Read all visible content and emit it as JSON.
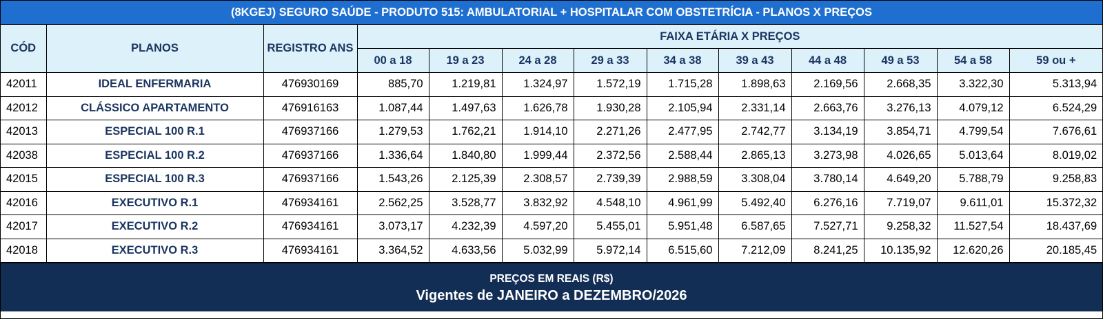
{
  "title": "(8KGEJ) SEGURO SAÚDE - PRODUTO 515: AMBULATORIAL + HOSPITALAR COM OBSTETRÍCIA - PLANOS X PREÇOS",
  "headers": {
    "cod": "CÓD",
    "planos": "PLANOS",
    "registro": "REGISTRO ANS",
    "faixa": "FAIXA ETÁRIA X PREÇOS",
    "ages": [
      "00 a 18",
      "19 a 23",
      "24 a 28",
      "29 a 33",
      "34 a 38",
      "39 a 43",
      "44 a 48",
      "49 a 53",
      "54 a 58",
      "59 ou +"
    ]
  },
  "rows": [
    {
      "cod": "42011",
      "plano": "IDEAL ENFERMARIA",
      "registro": "476930169",
      "precos": [
        "885,70",
        "1.219,81",
        "1.324,97",
        "1.572,19",
        "1.715,28",
        "1.898,63",
        "2.169,56",
        "2.668,35",
        "3.322,30",
        "5.313,94"
      ]
    },
    {
      "cod": "42012",
      "plano": "CLÁSSICO APARTAMENTO",
      "registro": "476916163",
      "precos": [
        "1.087,44",
        "1.497,63",
        "1.626,78",
        "1.930,28",
        "2.105,94",
        "2.331,14",
        "2.663,76",
        "3.276,13",
        "4.079,12",
        "6.524,29"
      ]
    },
    {
      "cod": "42013",
      "plano": "ESPECIAL 100 R.1",
      "registro": "476937166",
      "precos": [
        "1.279,53",
        "1.762,21",
        "1.914,10",
        "2.271,26",
        "2.477,95",
        "2.742,77",
        "3.134,19",
        "3.854,71",
        "4.799,54",
        "7.676,61"
      ]
    },
    {
      "cod": "42038",
      "plano": "ESPECIAL 100 R.2",
      "registro": "476937166",
      "precos": [
        "1.336,64",
        "1.840,80",
        "1.999,44",
        "2.372,56",
        "2.588,44",
        "2.865,13",
        "3.273,98",
        "4.026,65",
        "5.013,64",
        "8.019,02"
      ]
    },
    {
      "cod": "42015",
      "plano": "ESPECIAL 100 R.3",
      "registro": "476937166",
      "precos": [
        "1.543,26",
        "2.125,39",
        "2.308,57",
        "2.739,39",
        "2.988,59",
        "3.308,04",
        "3.780,14",
        "4.649,20",
        "5.788,79",
        "9.258,83"
      ]
    },
    {
      "cod": "42016",
      "plano": "EXECUTIVO R.1",
      "registro": "476934161",
      "precos": [
        "2.562,25",
        "3.528,77",
        "3.832,92",
        "4.548,10",
        "4.961,99",
        "5.492,40",
        "6.276,16",
        "7.719,07",
        "9.611,01",
        "15.372,32"
      ]
    },
    {
      "cod": "42017",
      "plano": "EXECUTIVO R.2",
      "registro": "476934161",
      "precos": [
        "3.073,17",
        "4.232,39",
        "4.597,20",
        "5.455,01",
        "5.951,48",
        "6.587,65",
        "7.527,71",
        "9.258,32",
        "11.527,54",
        "18.437,69"
      ]
    },
    {
      "cod": "42018",
      "plano": "EXECUTIVO R.3",
      "registro": "476934161",
      "precos": [
        "3.364,52",
        "4.633,56",
        "5.032,99",
        "5.972,14",
        "6.515,60",
        "7.212,09",
        "8.241,25",
        "10.135,92",
        "12.620,26",
        "20.185,45"
      ]
    }
  ],
  "footer": {
    "line1": "PREÇOS EM REAIS (R$)",
    "line2": "Vigentes de JANEIRO a DEZEMBRO/2026"
  },
  "colors": {
    "title_bg": "#1f6fd1",
    "header_bg": "#ddf1fb",
    "header_text": "#1b3560",
    "footer_bg": "#132e55"
  }
}
